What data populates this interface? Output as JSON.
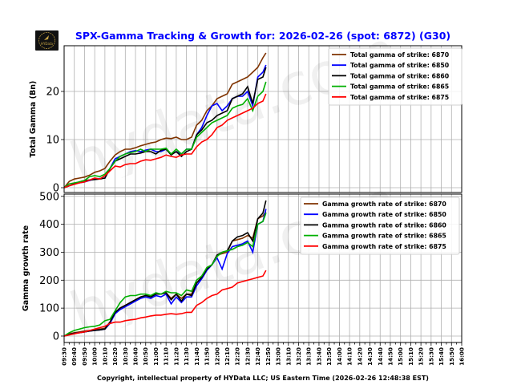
{
  "title": "SPX-Gamma Tracking & Growth for: 2026-02-26 (spot: 6872) (G30)",
  "footer": "Copyright, intellectual property of HYData LLC; US Eastern Time (2026-02-26 12:48:38 EST)",
  "logo_text": "HYData",
  "watermark": "hydata.com",
  "chart_data": [
    {
      "type": "line",
      "ylabel": "Total Gamma (Bn)",
      "xlim": [
        "09:30",
        "16:00"
      ],
      "ylim": [
        -1,
        29.5
      ],
      "yticks": [
        0,
        10,
        20
      ],
      "grid": true,
      "legend": "top-right",
      "x_ticks": [
        "09:30",
        "09:40",
        "09:50",
        "10:00",
        "10:10",
        "10:20",
        "10:30",
        "10:40",
        "10:50",
        "11:00",
        "11:10",
        "11:20",
        "11:30",
        "11:40",
        "11:50",
        "12:00",
        "12:10",
        "12:20",
        "12:30",
        "12:40",
        "12:50",
        "13:00",
        "13:10",
        "13:20",
        "13:30",
        "13:40",
        "13:50",
        "14:00",
        "14:10",
        "14:20",
        "14:30",
        "14:40",
        "14:50",
        "15:00",
        "15:10",
        "15:20",
        "15:30",
        "15:40",
        "15:50",
        "16:00"
      ],
      "x": [
        "09:30",
        "09:35",
        "09:40",
        "09:45",
        "09:50",
        "09:55",
        "10:00",
        "10:05",
        "10:10",
        "10:15",
        "10:20",
        "10:25",
        "10:30",
        "10:35",
        "10:40",
        "10:45",
        "10:50",
        "10:55",
        "11:00",
        "11:05",
        "11:10",
        "11:15",
        "11:20",
        "11:25",
        "11:30",
        "11:35",
        "11:40",
        "11:45",
        "11:50",
        "11:55",
        "12:00",
        "12:05",
        "12:10",
        "12:15",
        "12:20",
        "12:25",
        "12:30",
        "12:35",
        "12:40",
        "12:45",
        "12:48"
      ],
      "series": [
        {
          "name": "Total gamma of strike: 6870",
          "color": "#7f3300",
          "values": [
            0,
            1.3,
            1.8,
            2,
            2.2,
            2.6,
            3.2,
            3.5,
            4,
            5.5,
            6.8,
            7.5,
            8,
            8,
            8.3,
            8.7,
            9,
            9.3,
            9.5,
            10,
            10.3,
            10.2,
            10.5,
            10,
            10,
            10.5,
            13,
            14,
            16,
            17,
            18.5,
            19,
            19.5,
            21.5,
            22,
            22.5,
            23,
            24,
            25,
            27,
            28
          ]
        },
        {
          "name": "Total gamma of strike: 6850",
          "color": "#0000ff",
          "values": [
            0,
            0.4,
            0.8,
            1,
            1.2,
            1.5,
            1.8,
            1.9,
            2,
            4,
            6,
            6.5,
            7,
            7.5,
            7.7,
            7.5,
            7.8,
            8,
            7.5,
            7.5,
            8,
            7,
            7.5,
            7,
            8,
            8,
            11,
            12.5,
            15,
            17,
            17.5,
            16,
            17,
            18.5,
            19,
            19,
            20,
            17,
            23,
            24,
            25.5
          ]
        },
        {
          "name": "Total gamma of strike: 6860",
          "color": "#000000",
          "values": [
            0,
            0.4,
            0.8,
            1.2,
            1.5,
            1.6,
            1.7,
            1.8,
            2,
            4,
            5.5,
            6,
            6.5,
            7,
            7,
            7.2,
            7.5,
            7.5,
            7,
            7.8,
            8,
            6.8,
            7.5,
            6.5,
            7.5,
            8,
            11,
            12,
            13.5,
            14,
            15,
            15.5,
            16,
            18.5,
            19,
            19.5,
            21,
            17.5,
            22.5,
            23,
            25
          ]
        },
        {
          "name": "Total gamma of strike: 6865",
          "color": "#00b000",
          "values": [
            0,
            0.8,
            1,
            1.2,
            1.5,
            2.3,
            2.5,
            2.3,
            2.8,
            4,
            5.5,
            6.5,
            7,
            7.3,
            7.5,
            8,
            7.5,
            8,
            8,
            8,
            8.2,
            7,
            8,
            7,
            8,
            8,
            10.5,
            11.5,
            12.5,
            13.5,
            14,
            14.5,
            15,
            16.5,
            17,
            17.3,
            18.5,
            16,
            19,
            20,
            22
          ]
        },
        {
          "name": "Total gamma of strike: 6875",
          "color": "#ff0000",
          "values": [
            0,
            0.4,
            0.7,
            1,
            1.2,
            1.6,
            2,
            1.8,
            2.5,
            3.5,
            4.5,
            4.3,
            4.8,
            5,
            5,
            5.5,
            5.8,
            5.7,
            6,
            6.3,
            6.8,
            6.5,
            6.3,
            6.8,
            7,
            7,
            8.5,
            9.5,
            10,
            11,
            12.5,
            13,
            14,
            14.5,
            15,
            15.5,
            16,
            16.5,
            17.5,
            18,
            19.5
          ]
        }
      ]
    },
    {
      "type": "line",
      "ylabel": "Gamma growth rate",
      "xlim": [
        "09:30",
        "16:00"
      ],
      "ylim": [
        -23,
        508
      ],
      "yticks": [
        0,
        100,
        200,
        300,
        400,
        500
      ],
      "grid": true,
      "legend": "top-right",
      "x": [
        "09:30",
        "09:35",
        "09:40",
        "09:45",
        "09:50",
        "09:55",
        "10:00",
        "10:05",
        "10:10",
        "10:15",
        "10:20",
        "10:25",
        "10:30",
        "10:35",
        "10:40",
        "10:45",
        "10:50",
        "10:55",
        "11:00",
        "11:05",
        "11:10",
        "11:15",
        "11:20",
        "11:25",
        "11:30",
        "11:35",
        "11:40",
        "11:45",
        "11:50",
        "11:55",
        "12:00",
        "12:05",
        "12:10",
        "12:15",
        "12:20",
        "12:25",
        "12:30",
        "12:35",
        "12:40",
        "12:45",
        "12:48"
      ],
      "series": [
        {
          "name": "Gamma growth rate of strike: 6870",
          "color": "#7f3300",
          "values": [
            0,
            8,
            12,
            15,
            18,
            20,
            22,
            25,
            28,
            50,
            85,
            100,
            110,
            120,
            130,
            140,
            145,
            145,
            150,
            150,
            155,
            135,
            150,
            135,
            150,
            150,
            190,
            210,
            245,
            255,
            290,
            295,
            300,
            340,
            345,
            350,
            360,
            350,
            420,
            430,
            445
          ]
        },
        {
          "name": "Gamma growth rate of strike: 6850",
          "color": "#0000ff",
          "values": [
            0,
            5,
            10,
            12,
            15,
            18,
            20,
            22,
            25,
            45,
            80,
            95,
            105,
            115,
            125,
            135,
            140,
            135,
            145,
            140,
            150,
            115,
            140,
            120,
            140,
            140,
            180,
            205,
            235,
            255,
            280,
            240,
            295,
            320,
            325,
            330,
            340,
            300,
            400,
            410,
            455
          ]
        },
        {
          "name": "Gamma growth rate of strike: 6860",
          "color": "#000000",
          "values": [
            0,
            5,
            10,
            12,
            15,
            18,
            20,
            22,
            25,
            50,
            85,
            100,
            110,
            120,
            130,
            140,
            145,
            140,
            150,
            150,
            155,
            130,
            150,
            125,
            150,
            145,
            190,
            210,
            240,
            255,
            290,
            300,
            305,
            340,
            355,
            360,
            370,
            340,
            420,
            440,
            485
          ]
        },
        {
          "name": "Gamma growth rate of strike: 6865",
          "color": "#00b000",
          "values": [
            0,
            12,
            20,
            25,
            30,
            33,
            35,
            40,
            55,
            60,
            90,
            120,
            140,
            145,
            145,
            150,
            150,
            145,
            155,
            150,
            160,
            155,
            155,
            145,
            165,
            160,
            200,
            215,
            245,
            255,
            285,
            300,
            305,
            310,
            320,
            325,
            335,
            320,
            400,
            410,
            440
          ]
        },
        {
          "name": "Gamma growth rate of strike: 6875",
          "color": "#ff0000",
          "values": [
            0,
            4,
            8,
            12,
            15,
            20,
            25,
            30,
            35,
            45,
            50,
            50,
            55,
            58,
            60,
            65,
            68,
            72,
            75,
            75,
            78,
            80,
            78,
            80,
            85,
            85,
            110,
            120,
            135,
            145,
            150,
            165,
            170,
            175,
            190,
            195,
            200,
            205,
            210,
            215,
            235
          ]
        }
      ]
    }
  ]
}
